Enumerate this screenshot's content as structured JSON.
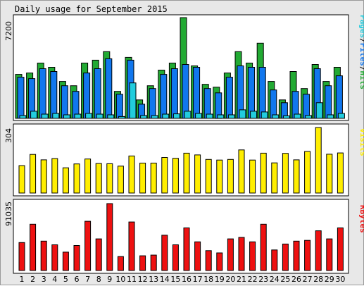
{
  "title": "Daily usage for September 2015",
  "colors": {
    "hits": "#22aa33",
    "files": "#1177ee",
    "pages": "#22ccdd",
    "visits": "#ffee00",
    "kbytes": "#ee1111",
    "weekend_label": "#119922",
    "weekday_label": "#000000",
    "panel_bg": "#ffffff",
    "outer_bg": "#e8e8e8"
  },
  "chart_data": [
    {
      "type": "bar",
      "name": "hits-files-pages",
      "ytick_label": "7200",
      "ylim": [
        0,
        7200
      ],
      "legend": [
        "Pages",
        "Files",
        "Hits"
      ],
      "legend_placement": "right-vertical",
      "categories": [
        "1",
        "2",
        "3",
        "4",
        "5",
        "6",
        "7",
        "8",
        "9",
        "10",
        "11",
        "12",
        "13",
        "14",
        "15",
        "16",
        "17",
        "18",
        "19",
        "20",
        "21",
        "22",
        "23",
        "24",
        "25",
        "26",
        "27",
        "28",
        "29",
        "30"
      ],
      "weekend": [
        false,
        false,
        false,
        false,
        true,
        true,
        false,
        false,
        false,
        false,
        false,
        true,
        true,
        false,
        false,
        false,
        false,
        false,
        true,
        true,
        false,
        false,
        false,
        false,
        false,
        true,
        true,
        false,
        false,
        false
      ],
      "series": [
        {
          "name": "Hits",
          "values": [
            3100,
            3200,
            3900,
            3600,
            2600,
            2300,
            3900,
            4100,
            4700,
            1900,
            4300,
            1300,
            2300,
            3400,
            3900,
            7100,
            3700,
            2400,
            2200,
            3200,
            4700,
            3900,
            5300,
            2600,
            1300,
            3300,
            2100,
            3800,
            2600,
            3600
          ]
        },
        {
          "name": "Files",
          "values": [
            2900,
            2800,
            3500,
            3300,
            2300,
            1900,
            3200,
            3500,
            4200,
            1700,
            4100,
            1000,
            2100,
            3100,
            3500,
            3800,
            3600,
            2100,
            1800,
            2900,
            3700,
            3600,
            3600,
            2000,
            1100,
            1900,
            1700,
            3500,
            2300,
            3000
          ]
        },
        {
          "name": "Pages",
          "values": [
            200,
            500,
            300,
            350,
            250,
            300,
            350,
            300,
            250,
            130,
            2500,
            200,
            200,
            300,
            320,
            500,
            350,
            300,
            250,
            250,
            600,
            500,
            450,
            250,
            180,
            300,
            200,
            1100,
            250,
            350
          ]
        }
      ]
    },
    {
      "type": "bar",
      "name": "visits",
      "ytick_label": "304",
      "ylim": [
        0,
        304
      ],
      "legend": [
        "Visits"
      ],
      "legend_placement": "right-vertical",
      "series": [
        {
          "name": "Visits",
          "values": [
            127,
            179,
            154,
            160,
            117,
            135,
            158,
            137,
            136,
            125,
            172,
            139,
            139,
            165,
            161,
            185,
            177,
            156,
            153,
            156,
            200,
            153,
            185,
            140,
            184,
            154,
            193,
            304,
            180,
            186
          ]
        }
      ]
    },
    {
      "type": "bar",
      "name": "kbytes",
      "ytick_label": "91035",
      "ylim": [
        0,
        91035
      ],
      "legend": [
        "KBytes"
      ],
      "legend_placement": "right-vertical",
      "series": [
        {
          "name": "KBytes",
          "values": [
            38000,
            63000,
            40000,
            35000,
            25000,
            34000,
            67000,
            43000,
            91035,
            19000,
            66000,
            20000,
            21000,
            48000,
            35000,
            58000,
            39000,
            27000,
            24000,
            43000,
            45000,
            39000,
            63000,
            28000,
            36000,
            40000,
            41000,
            54000,
            43000,
            58000
          ]
        }
      ]
    }
  ]
}
